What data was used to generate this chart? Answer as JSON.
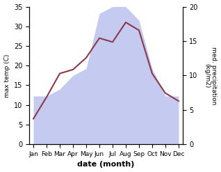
{
  "months": [
    "Jan",
    "Feb",
    "Mar",
    "Apr",
    "May",
    "Jun",
    "Jul",
    "Aug",
    "Sep",
    "Oct",
    "Nov",
    "Dec"
  ],
  "month_indices": [
    0,
    1,
    2,
    3,
    4,
    5,
    6,
    7,
    8,
    9,
    10,
    11
  ],
  "max_temp": [
    6.5,
    12.0,
    18.0,
    19.0,
    22.0,
    27.0,
    26.0,
    31.0,
    29.0,
    18.0,
    13.0,
    11.0
  ],
  "precipitation": [
    7.0,
    7.0,
    8.0,
    10.0,
    11.0,
    19.0,
    20.0,
    20.0,
    18.0,
    11.0,
    7.0,
    7.0
  ],
  "temp_color": "#8b3a4a",
  "precip_fill_color": "#c5caf0",
  "ylabel_left": "max temp (C)",
  "ylabel_right": "med. precipitation\n(kg/m2)",
  "xlabel": "date (month)",
  "ylim_left": [
    0,
    35
  ],
  "ylim_right": [
    0,
    20
  ],
  "yticks_left": [
    0,
    5,
    10,
    15,
    20,
    25,
    30,
    35
  ],
  "yticks_right": [
    0,
    5,
    10,
    15,
    20
  ],
  "background_color": "#ffffff"
}
